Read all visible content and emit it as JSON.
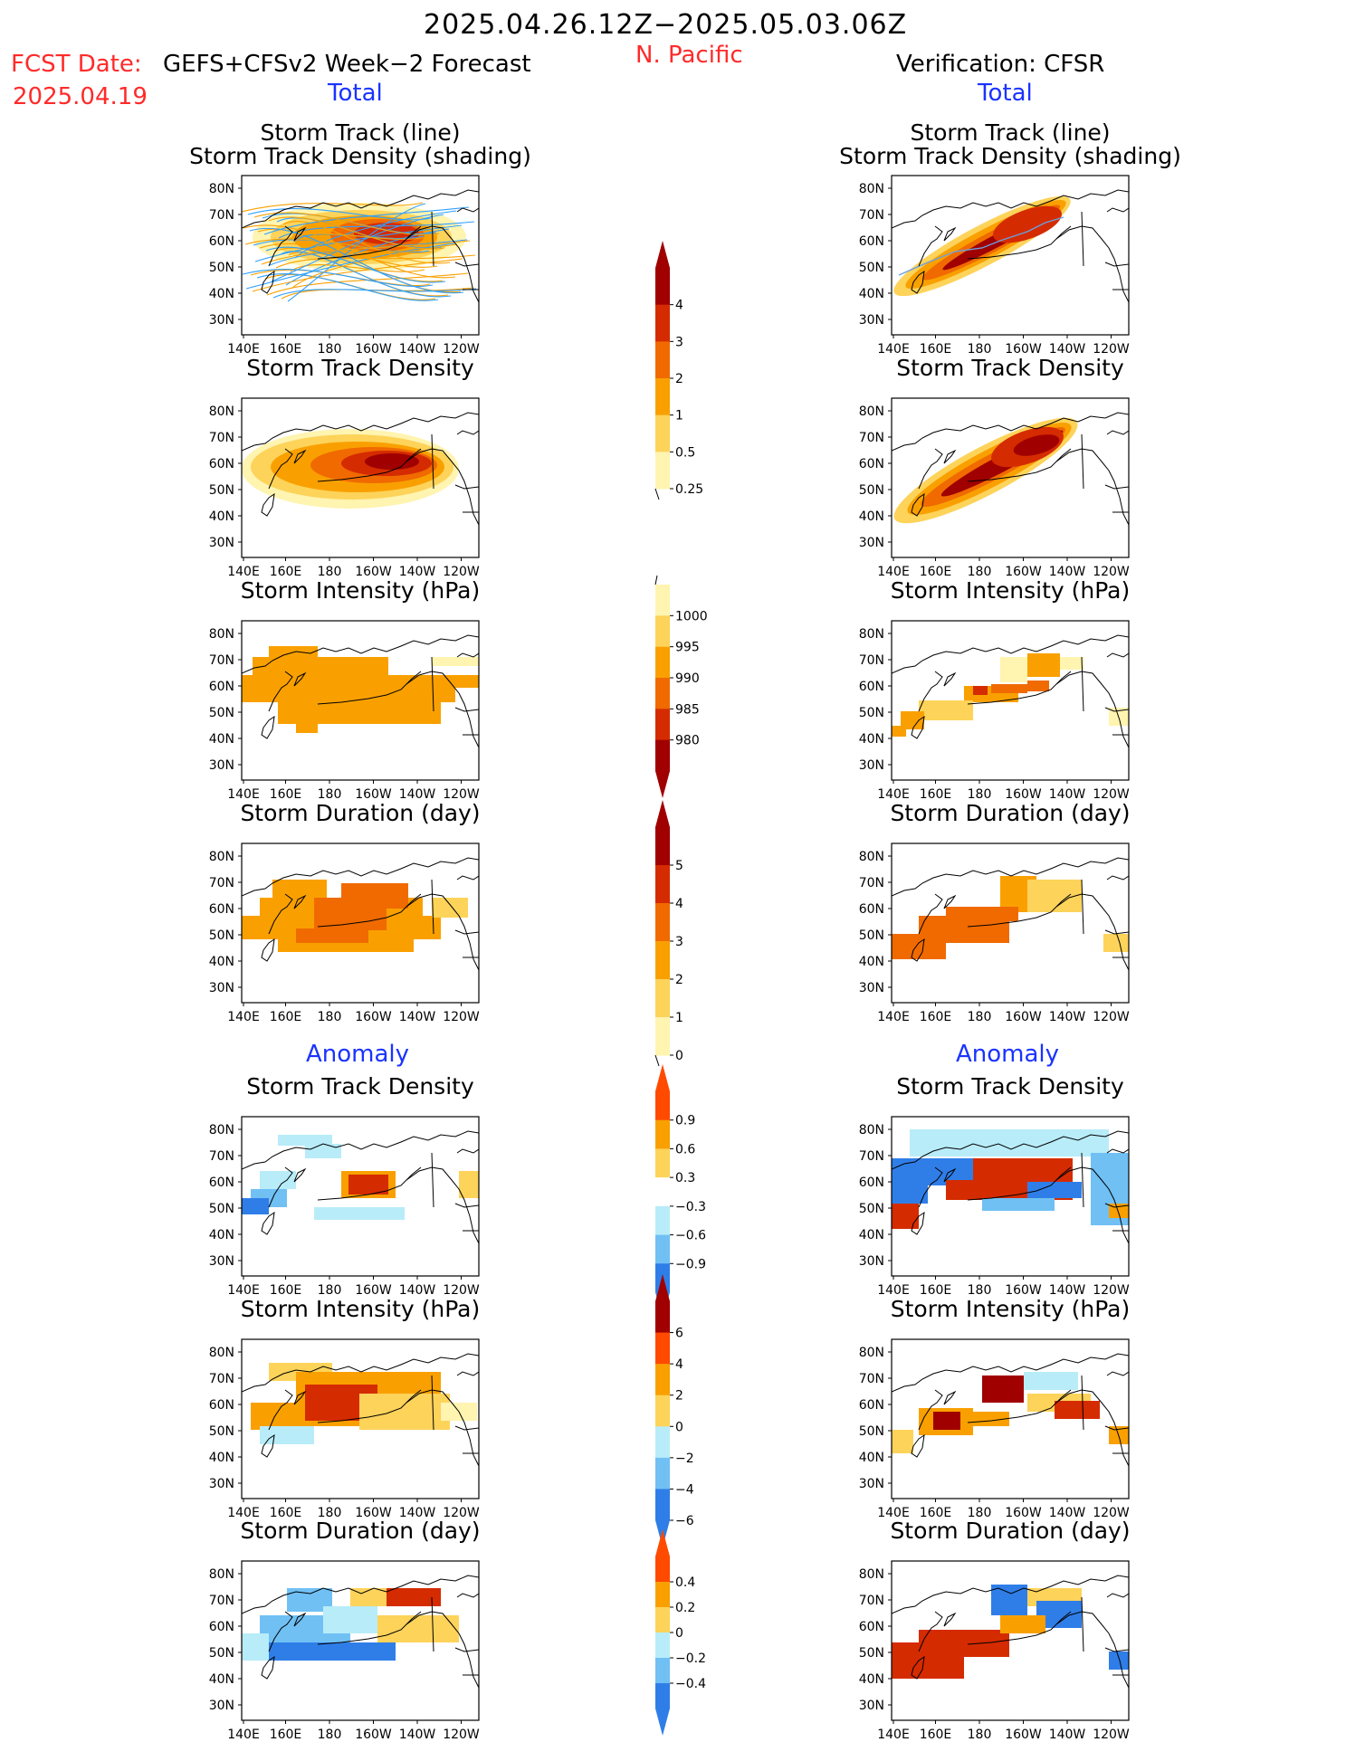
{
  "header": {
    "title": "2025.04.26.12Z−2025.05.03.06Z",
    "region": "N. Pacific",
    "fcst_label": "FCST Date:",
    "fcst_model": "GEFS+CFSv2 Week−2 Forecast",
    "fcst_date": "2025.04.19",
    "verification": "Verification: CFSR",
    "total_left": "Total",
    "total_right": "Total",
    "anomaly_left": "Anomaly",
    "anomaly_right": "Anomaly"
  },
  "axes": {
    "lat_labels": [
      "80N",
      "70N",
      "60N",
      "50N",
      "40N",
      "30N"
    ],
    "lon_labels": [
      "140E",
      "160E",
      "180",
      "160W",
      "140W",
      "120W"
    ]
  },
  "panels": [
    {
      "id": "track",
      "title1": "Storm Track (line)",
      "title2": "Storm Track Density (shading)"
    },
    {
      "id": "density",
      "title1": "Storm Track Density"
    },
    {
      "id": "intensity",
      "title1": "Storm Intensity (hPa)"
    },
    {
      "id": "duration",
      "title1": "Storm Duration (day)"
    },
    {
      "id": "anom_density",
      "title1": "Storm Track Density"
    },
    {
      "id": "anom_intensity",
      "title1": "Storm Intensity (hPa)"
    },
    {
      "id": "anom_duration",
      "title1": "Storm Duration (day)"
    }
  ],
  "colorbars": [
    {
      "id": "cb_density",
      "labels": [
        "4",
        "3",
        "2",
        "1",
        "0.5",
        "0.25"
      ],
      "colors": [
        "#a00000",
        "#d52b00",
        "#f06a00",
        "#f9a000",
        "#fdd35a",
        "#fff4b0"
      ]
    },
    {
      "id": "cb_intensity",
      "labels": [
        "1000",
        "995",
        "990",
        "985",
        "980"
      ],
      "colors": [
        "#fff4b0",
        "#fdd35a",
        "#f9a000",
        "#f06a00",
        "#d52b00",
        "#a00000"
      ]
    },
    {
      "id": "cb_duration",
      "labels": [
        "5",
        "4",
        "3",
        "2",
        "1",
        "0"
      ],
      "colors": [
        "#a00000",
        "#d52b00",
        "#f06a00",
        "#f9a000",
        "#fdd35a",
        "#fff4b0"
      ]
    },
    {
      "id": "cb_anom_density",
      "labels": [
        "0.9",
        "0.6",
        "0.3",
        "−0.3",
        "−0.6",
        "−0.9"
      ],
      "colors": [
        "#ff4a00",
        "#f9a000",
        "#fdd35a",
        "#ffffff",
        "#b8ecf9",
        "#70c0f4",
        "#2f7ee8"
      ]
    },
    {
      "id": "cb_anom_intensity",
      "labels": [
        "6",
        "4",
        "2",
        "0",
        "−2",
        "−4",
        "−6"
      ],
      "colors": [
        "#a00000",
        "#ff4a00",
        "#f9a000",
        "#fdd35a",
        "#b8ecf9",
        "#70c0f4",
        "#2f7ee8"
      ]
    },
    {
      "id": "cb_anom_duration",
      "labels": [
        "0.4",
        "0.2",
        "0",
        "−0.2",
        "−0.4"
      ],
      "colors": [
        "#ff4a00",
        "#f9a000",
        "#fdd35a",
        "#b8ecf9",
        "#70c0f4",
        "#2f7ee8"
      ]
    }
  ],
  "colors": {
    "text_red": "#ff2a2a",
    "text_blue": "#1a33ff",
    "track_blue": "#2fa0ff",
    "track_orange": "#f9a000"
  }
}
